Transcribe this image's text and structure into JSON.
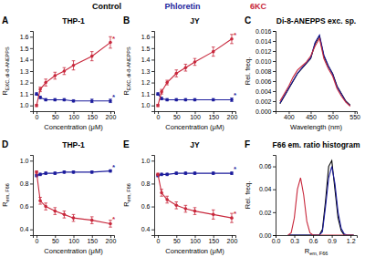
{
  "chart_data": [
    {
      "type": "line",
      "panel": "A",
      "title": "THP-1",
      "xlabel": "Concentration (μM)",
      "ylabel": "R",
      "ylabel_sub": "EXC, di-8-ANEPPS",
      "x": [
        0,
        10,
        25,
        50,
        75,
        100,
        150,
        200
      ],
      "xlim": [
        -10,
        210
      ],
      "xticks": [
        0,
        50,
        100,
        150,
        200
      ],
      "ylim": [
        0.95,
        1.65
      ],
      "yticks": [
        {
          "value": 1.0,
          "label": "1.0"
        },
        1.1,
        1.2,
        1.3,
        1.4,
        1.5,
        1.6
      ],
      "series": [
        {
          "name": "Phloretin",
          "color": "#1c1c9c",
          "marker": "circle",
          "annotation": "*",
          "values": [
            1.1,
            1.07,
            1.05,
            1.05,
            1.05,
            1.04,
            1.04,
            1.04
          ],
          "errors": [
            0.01,
            0.01,
            0.01,
            0.01,
            0.01,
            0.01,
            0.015,
            0.015
          ]
        },
        {
          "name": "6KC",
          "color": "#c8283c",
          "marker": "circle",
          "annotation": "*",
          "values": [
            1.0,
            1.14,
            1.2,
            1.26,
            1.3,
            1.35,
            1.43,
            1.55
          ],
          "errors": [
            0.01,
            0.02,
            0.03,
            0.03,
            0.03,
            0.04,
            0.04,
            0.05
          ]
        }
      ]
    },
    {
      "type": "line",
      "panel": "B",
      "title": "JY",
      "xlabel": "Concentration (μM)",
      "ylabel": "R",
      "ylabel_sub": "EXC, di-8-ANEPPS",
      "x": [
        0,
        10,
        25,
        50,
        75,
        100,
        150,
        200
      ],
      "xlim": [
        -10,
        210
      ],
      "xticks": [
        0,
        50,
        100,
        150,
        200
      ],
      "ylim": [
        0.95,
        1.65
      ],
      "yticks": [
        {
          "value": 1.0,
          "label": "1.0"
        },
        1.1,
        1.2,
        1.3,
        1.4,
        1.5,
        1.6
      ],
      "series": [
        {
          "name": "Phloretin",
          "color": "#1c1c9c",
          "marker": "circle",
          "annotation": "*",
          "values": [
            1.1,
            1.06,
            1.05,
            1.05,
            1.05,
            1.05,
            1.05,
            1.05
          ],
          "errors": [
            0.01,
            0.01,
            0.01,
            0.01,
            0.01,
            0.01,
            0.01,
            0.015
          ]
        },
        {
          "name": "6KC",
          "color": "#c8283c",
          "marker": "circle",
          "annotation": "*",
          "values": [
            1.0,
            1.12,
            1.2,
            1.28,
            1.33,
            1.38,
            1.47,
            1.58
          ],
          "errors": [
            0.01,
            0.02,
            0.02,
            0.03,
            0.03,
            0.03,
            0.04,
            0.04
          ]
        }
      ]
    },
    {
      "type": "line",
      "panel": "C",
      "title": "Di-8-ANEPPS exc. sp.",
      "xlabel": "Wavelength (nm)",
      "ylabel": "Rel. freq.",
      "x": [
        380,
        390,
        400,
        410,
        420,
        430,
        440,
        450,
        460,
        470,
        480,
        490,
        500,
        510,
        520,
        530,
        540
      ],
      "xlim": [
        370,
        555
      ],
      "xticks": [
        400,
        450,
        500,
        550
      ],
      "ylim": [
        0,
        0.016
      ],
      "yticks": [
        {
          "value": 0,
          "label": "0.000"
        },
        0.002,
        0.004,
        0.006,
        0.008,
        {
          "value": 0.01,
          "label": "0.010"
        },
        0.012,
        0.014,
        0.016
      ],
      "series": [
        {
          "name": "Control",
          "color": "#000000",
          "values": [
            0.0015,
            0.003,
            0.0045,
            0.006,
            0.0075,
            0.0085,
            0.0095,
            0.0105,
            0.0135,
            0.015,
            0.011,
            0.009,
            0.0075,
            0.005,
            0.0035,
            0.002,
            0.0012
          ]
        },
        {
          "name": "Phloretin",
          "color": "#1c1c9c",
          "values": [
            0.0016,
            0.0031,
            0.0046,
            0.0061,
            0.0076,
            0.0086,
            0.0096,
            0.0106,
            0.0137,
            0.0152,
            0.0112,
            0.0091,
            0.0074,
            0.0049,
            0.0034,
            0.0019,
            0.0011
          ]
        },
        {
          "name": "6KC",
          "color": "#c8283c",
          "values": [
            0.002,
            0.0035,
            0.005,
            0.0068,
            0.0082,
            0.009,
            0.0098,
            0.011,
            0.013,
            0.0145,
            0.0105,
            0.0085,
            0.007,
            0.0045,
            0.003,
            0.0018,
            0.001
          ]
        }
      ]
    },
    {
      "type": "line",
      "panel": "D",
      "title": "THP-1",
      "xlabel": "Concentration (μM)",
      "ylabel": "R",
      "ylabel_sub": "em, F66",
      "x": [
        0,
        10,
        25,
        50,
        75,
        100,
        150,
        200
      ],
      "xlim": [
        -10,
        210
      ],
      "xticks": [
        0,
        50,
        100,
        150,
        200
      ],
      "ylim": [
        0.35,
        1.05
      ],
      "yticks": [
        0.4,
        0.6,
        0.8,
        {
          "value": 1.0,
          "label": "1.0"
        }
      ],
      "series": [
        {
          "name": "Phloretin",
          "color": "#1c1c9c",
          "marker": "circle",
          "annotation": "*",
          "values": [
            0.87,
            0.88,
            0.89,
            0.89,
            0.9,
            0.9,
            0.9,
            0.91
          ],
          "errors": [
            0.01,
            0.01,
            0.01,
            0.01,
            0.01,
            0.01,
            0.01,
            0.01
          ]
        },
        {
          "name": "6KC",
          "color": "#c8283c",
          "marker": "circle",
          "annotation": "*",
          "values": [
            0.9,
            0.65,
            0.6,
            0.56,
            0.53,
            0.5,
            0.48,
            0.45
          ],
          "errors": [
            0.01,
            0.03,
            0.03,
            0.03,
            0.03,
            0.03,
            0.03,
            0.03
          ]
        }
      ]
    },
    {
      "type": "line",
      "panel": "E",
      "title": "JY",
      "xlabel": "Concentration (μM)",
      "ylabel": "R",
      "ylabel_sub": "em, F66",
      "x": [
        0,
        10,
        25,
        50,
        75,
        100,
        150,
        200
      ],
      "xlim": [
        -10,
        210
      ],
      "xticks": [
        0,
        50,
        100,
        150,
        200
      ],
      "ylim": [
        0.35,
        1.05
      ],
      "yticks": [
        0.4,
        0.6,
        0.8,
        {
          "value": 1.0,
          "label": "1.0"
        }
      ],
      "series": [
        {
          "name": "Phloretin",
          "color": "#1c1c9c",
          "marker": "circle",
          "annotation": "*",
          "values": [
            0.87,
            0.88,
            0.88,
            0.89,
            0.89,
            0.89,
            0.89,
            0.89
          ],
          "errors": [
            0.01,
            0.01,
            0.01,
            0.01,
            0.01,
            0.01,
            0.01,
            0.01
          ]
        },
        {
          "name": "6KC",
          "color": "#c8283c",
          "marker": "circle",
          "annotation": "*",
          "values": [
            0.88,
            0.72,
            0.66,
            0.61,
            0.58,
            0.56,
            0.53,
            0.5
          ],
          "errors": [
            0.01,
            0.03,
            0.03,
            0.03,
            0.03,
            0.03,
            0.04,
            0.04
          ]
        }
      ]
    },
    {
      "type": "line",
      "panel": "F",
      "title": "F66 em. ratio histogram",
      "xlabel": "R",
      "xlabel_sub": "em, F66",
      "ylabel": "Rel. freq.",
      "x": [
        0.2,
        0.25,
        0.3,
        0.35,
        0.4,
        0.45,
        0.5,
        0.55,
        0.6,
        0.65,
        0.7,
        0.75,
        0.8,
        0.85,
        0.9,
        0.95,
        1.0,
        1.05,
        1.1,
        1.15,
        1.2,
        1.25
      ],
      "xlim": [
        0,
        1.3
      ],
      "xticks": [
        {
          "value": 0,
          "label": "0.0"
        },
        0.3,
        0.6,
        0.9,
        1.2
      ],
      "ylim": [
        0,
        0.07
      ],
      "yticks": [
        {
          "value": 0,
          "label": "0.00"
        },
        0.02,
        0.04,
        0.06
      ],
      "series": [
        {
          "name": "Control",
          "color": "#000000",
          "values": [
            0,
            0,
            0,
            0,
            0,
            0,
            0,
            0,
            0,
            0,
            0,
            0.005,
            0.03,
            0.06,
            0.065,
            0.04,
            0.015,
            0.004,
            0,
            0,
            0,
            0
          ]
        },
        {
          "name": "Phloretin",
          "color": "#1c1c9c",
          "values": [
            0,
            0,
            0,
            0,
            0,
            0,
            0,
            0,
            0,
            0,
            0,
            0.003,
            0.025,
            0.05,
            0.06,
            0.045,
            0.02,
            0.006,
            0.001,
            0,
            0,
            0
          ]
        },
        {
          "name": "6KC",
          "color": "#c8283c",
          "values": [
            0,
            0.002,
            0.015,
            0.04,
            0.05,
            0.035,
            0.012,
            0.002,
            0,
            0,
            0,
            0,
            0,
            0,
            0,
            0,
            0,
            0,
            0,
            0,
            0,
            0
          ]
        }
      ]
    }
  ]
}
